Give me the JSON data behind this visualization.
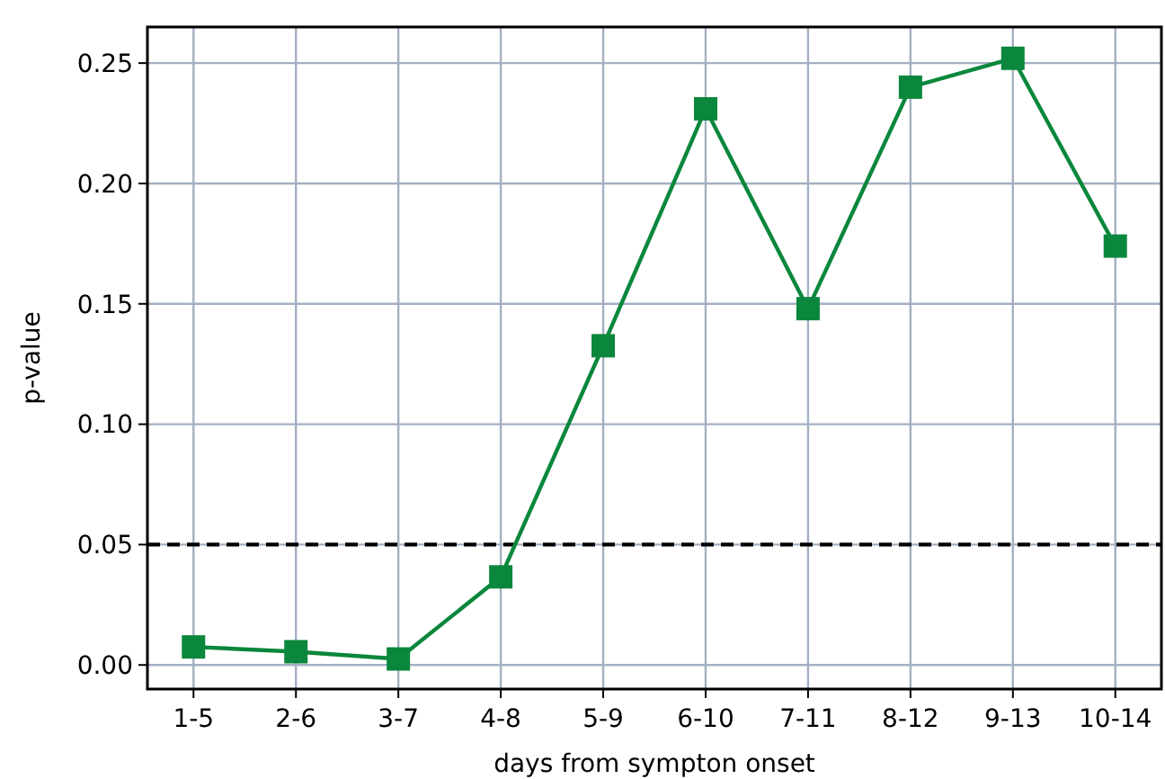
{
  "chart_data": {
    "type": "line",
    "xlabel": "days from sympton onset",
    "ylabel": "p-value",
    "categories": [
      "1-5",
      "2-6",
      "3-7",
      "4-8",
      "5-9",
      "6-10",
      "7-11",
      "8-12",
      "9-13",
      "10-14"
    ],
    "series": [
      {
        "color": "#0a873c",
        "values": [
          0.0075,
          0.0055,
          0.0025,
          0.0366,
          0.1326,
          0.231,
          0.148,
          0.24,
          0.252,
          0.174
        ]
      }
    ],
    "ylim": [
      -0.01,
      0.265
    ],
    "yticks": [
      {
        "value": 0,
        "label": "0.00"
      },
      {
        "value": 0.05,
        "label": "0.05"
      },
      {
        "value": 0.1,
        "label": "0.10"
      },
      {
        "value": 0.15,
        "label": "0.15"
      },
      {
        "value": 0.2,
        "label": "0.20"
      },
      {
        "value": 0.25,
        "label": "0.25"
      }
    ],
    "ref_lines": [
      {
        "axis": "y",
        "value": 0.05,
        "color": "#000000",
        "line_style": "dashed"
      }
    ],
    "grid": true,
    "marker": "square",
    "line_style": "solid"
  }
}
